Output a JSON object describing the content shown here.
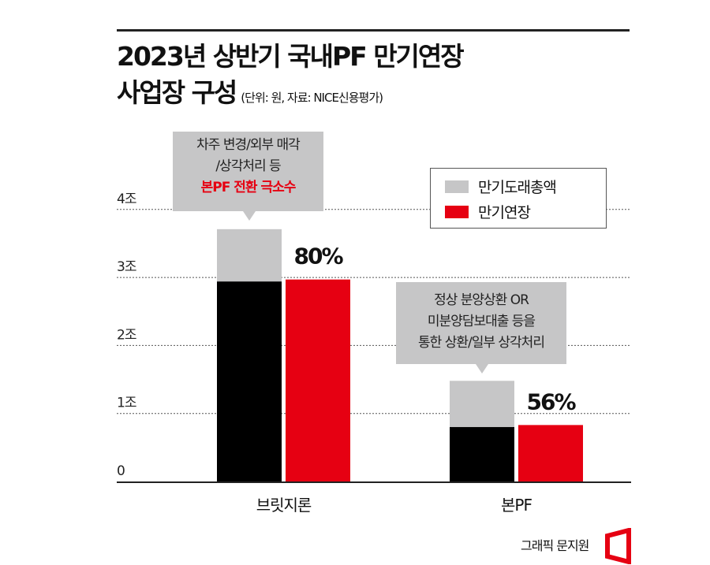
{
  "title_line1": "2023년 상반기 국내PF 만기연장",
  "title_line2": "사업장 구성",
  "subtitle": "(단위: 원, 자료: NICE신용평가)",
  "colors": {
    "total": "#c6c6c7",
    "extended_base": "#000000",
    "extended": "#e60012"
  },
  "chart_data": {
    "type": "bar",
    "categories": [
      "브릿지론",
      "본PF"
    ],
    "series": [
      {
        "name": "만기도래총액",
        "values": [
          3.71,
          1.48
        ],
        "color": "#c6c6c7"
      },
      {
        "name": "만기연장",
        "values": [
          2.97,
          0.83
        ],
        "color": "#e60012"
      }
    ],
    "black_overlay_values": [
      2.94,
      0.8
    ],
    "data_labels": [
      "80%",
      "56%"
    ],
    "yticks": [
      "0",
      "1조",
      "2조",
      "3조",
      "4조"
    ],
    "ylim": [
      0,
      4
    ],
    "grid": true,
    "legend_position": "top-right"
  },
  "callouts": [
    {
      "lines": [
        "차주 변경/외부 매각",
        "/상각처리 등"
      ],
      "highlight": "본PF 전환 극소수"
    },
    {
      "lines": [
        "정상 분양상환 OR",
        "미분양담보대출 등을",
        "통한 상환/일부 상각처리"
      ]
    }
  ],
  "credit": "그래픽 문지원"
}
